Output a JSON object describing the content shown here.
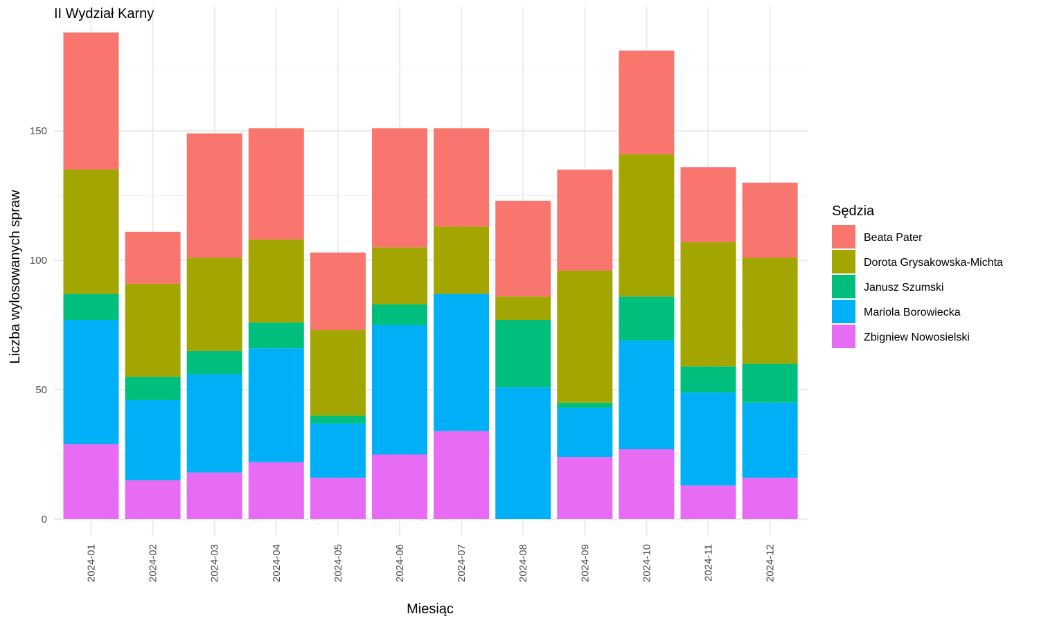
{
  "chart_data": {
    "type": "bar",
    "stacked": true,
    "title": "II Wydział Karny",
    "xlabel": "Miesiąc",
    "ylabel": "Liczba wylosowanych spraw",
    "ylim": [
      0,
      188
    ],
    "yticks": [
      0,
      50,
      100,
      150
    ],
    "grid": true,
    "legend": {
      "title": "Sędzia",
      "placement": "right"
    },
    "categories": [
      "2024-01",
      "2024-02",
      "2024-03",
      "2024-04",
      "2024-05",
      "2024-06",
      "2024-07",
      "2024-08",
      "2024-09",
      "2024-10",
      "2024-11",
      "2024-12"
    ],
    "series": [
      {
        "name": "Beata Pater",
        "color": "#F8766D",
        "values": [
          53,
          20,
          48,
          43,
          30,
          46,
          38,
          37,
          39,
          40,
          29,
          29
        ]
      },
      {
        "name": "Dorota Grysakowska-Michta",
        "color": "#A3A500",
        "values": [
          48,
          36,
          36,
          32,
          33,
          22,
          26,
          9,
          51,
          55,
          48,
          41
        ]
      },
      {
        "name": "Janusz Szumski",
        "color": "#00BF7D",
        "values": [
          10,
          9,
          9,
          10,
          3,
          8,
          0,
          26,
          2,
          17,
          10,
          15
        ]
      },
      {
        "name": "Mariola Borowiecka",
        "color": "#00B0F6",
        "values": [
          48,
          31,
          38,
          44,
          21,
          50,
          53,
          51,
          19,
          42,
          36,
          29
        ]
      },
      {
        "name": "Zbigniew Nowosielski",
        "color": "#E76BF3",
        "values": [
          29,
          15,
          18,
          22,
          16,
          25,
          34,
          0,
          24,
          27,
          13,
          16
        ]
      }
    ]
  }
}
